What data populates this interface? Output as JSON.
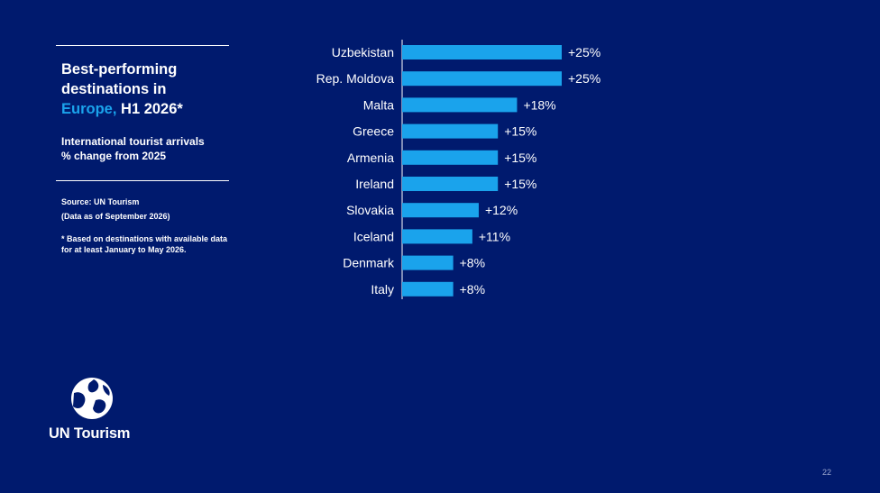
{
  "slide": {
    "title_line1": "Best-performing",
    "title_line2": "destinations in",
    "title_highlight": "Europe,",
    "title_rest": " H1 2026*",
    "subtitle_line1": "International tourist arrivals",
    "subtitle_line2": "% change from 2025",
    "source_line1": "Source: UN Tourism",
    "source_line2": "(Data as of September 2026)",
    "note_line1": "* Based on destinations with available data",
    "note_line2": "for at least January to May 2026.",
    "brand": "UN Tourism",
    "page_number": "22",
    "colors": {
      "background": "#001a6e",
      "bar": "#1aa3ec",
      "highlight": "#1aa3ec",
      "text": "#ffffff"
    }
  },
  "chart_data": {
    "type": "bar",
    "orientation": "horizontal",
    "categories": [
      "Uzbekistan",
      "Rep. Moldova",
      "Malta",
      "Greece",
      "Armenia",
      "Ireland",
      "Slovakia",
      "Iceland",
      "Denmark",
      "Italy"
    ],
    "values": [
      25,
      25,
      18,
      15,
      15,
      15,
      12,
      11,
      8,
      8
    ],
    "data_labels": [
      "+25%",
      "+25%",
      "+18%",
      "+15%",
      "+15%",
      "+15%",
      "+12%",
      "+11%",
      "+8%",
      "+8%"
    ],
    "xlim": [
      0,
      25
    ],
    "unit": "%",
    "grid": false,
    "legend": "none"
  }
}
